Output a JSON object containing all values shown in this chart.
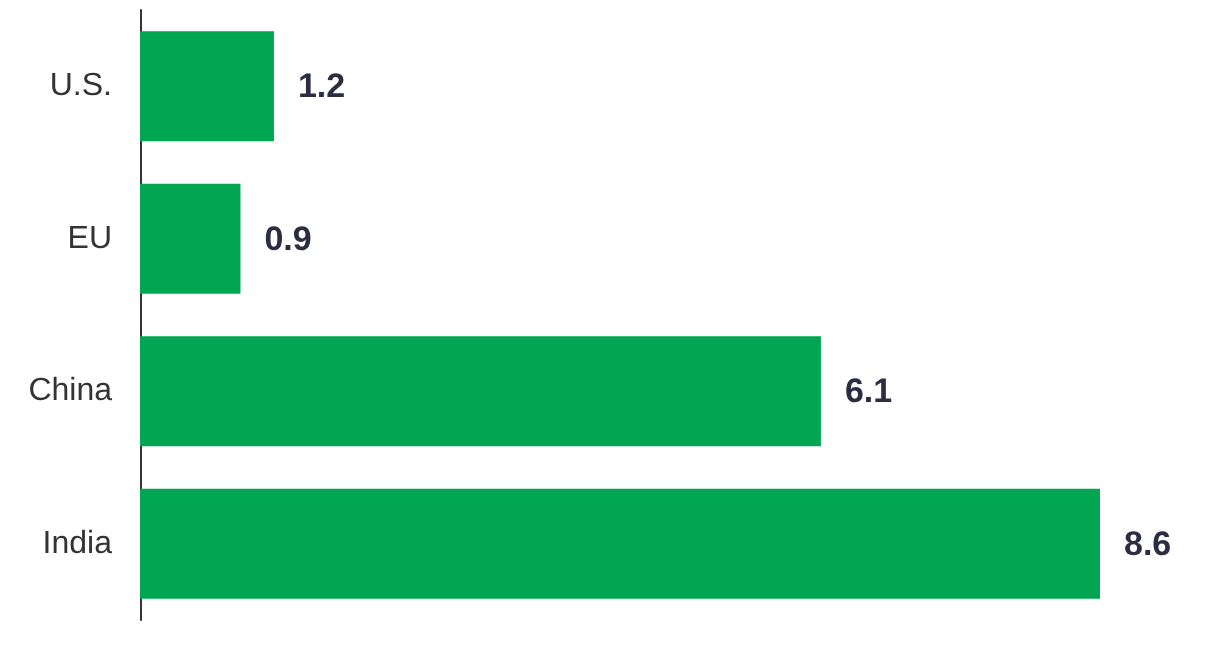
{
  "chart_data": {
    "type": "bar",
    "orientation": "horizontal",
    "categories": [
      "U.S.",
      "EU",
      "China",
      "India"
    ],
    "values": [
      1.2,
      0.9,
      6.1,
      8.6
    ],
    "color": "#00a651",
    "data_labels": true
  }
}
